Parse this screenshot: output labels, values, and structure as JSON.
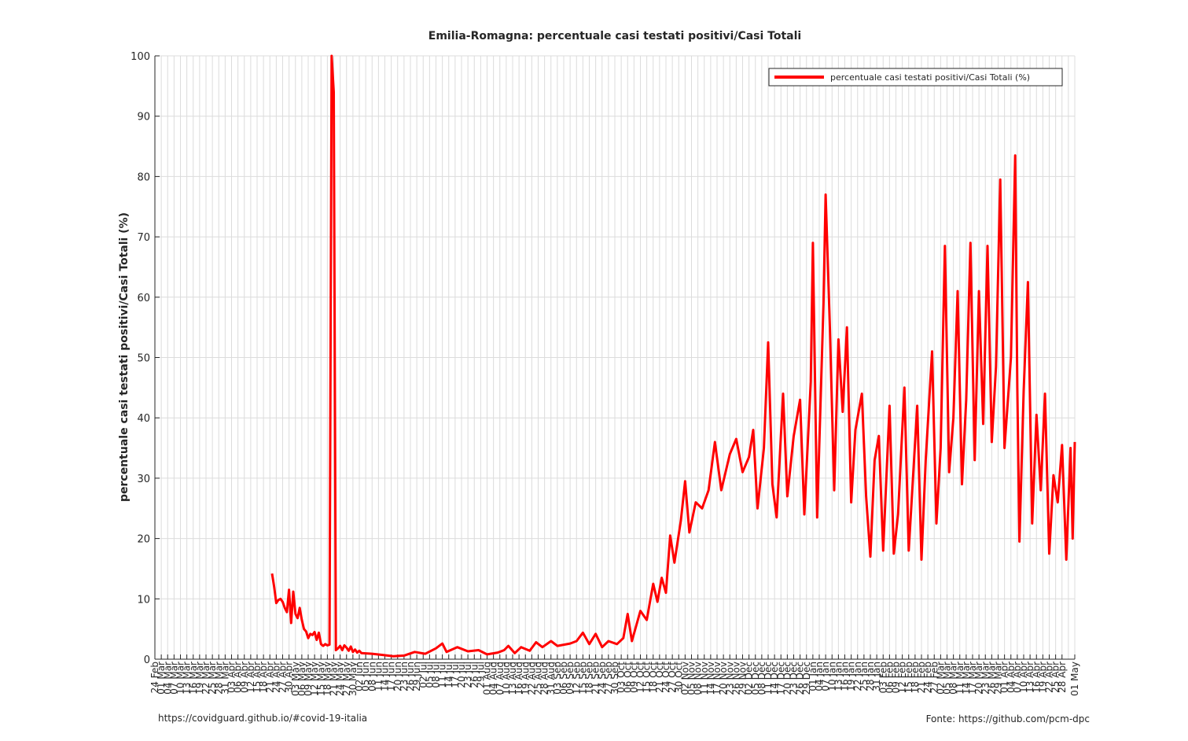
{
  "chart_data": {
    "type": "line",
    "title": "Emilia-Romagna: percentuale casi testati positivi/Casi Totali",
    "xlabel": "",
    "ylabel": "percentuale casi testati positivi/Casi Totali (%)",
    "ylim": [
      0,
      100
    ],
    "yticks": [
      0,
      10,
      20,
      30,
      40,
      50,
      60,
      70,
      80,
      90,
      100
    ],
    "grid": true,
    "legend_position": "top-right",
    "x_start": "2020-02-24",
    "x_end": "2021-05-01",
    "xtick_labels": [
      "24 Feb",
      "01 Mar",
      "04 Mar",
      "07 Mar",
      "10 Mar",
      "13 Mar",
      "16 Mar",
      "19 Mar",
      "22 Mar",
      "25 Mar",
      "28 Mar",
      "31 Mar",
      "03 Apr",
      "06 Apr",
      "09 Apr",
      "12 Apr",
      "15 Apr",
      "18 Apr",
      "21 Apr",
      "24 Apr",
      "27 Apr",
      "30 Apr",
      "03 May",
      "06 May",
      "09 May",
      "12 May",
      "15 May",
      "18 May",
      "21 May",
      "24 May",
      "27 May",
      "30 May",
      "02 Jun",
      "05 Jun",
      "08 Jun",
      "11 Jun",
      "14 Jun",
      "17 Jun",
      "20 Jun",
      "23 Jun",
      "26 Jun",
      "29 Jun",
      "02 Jul",
      "05 Jul",
      "08 Jul",
      "11 Jul",
      "14 Jul",
      "17 Jul",
      "20 Jul",
      "23 Jul",
      "26 Jul",
      "29 Jul",
      "01 Aug",
      "04 Aug",
      "07 Aug",
      "10 Aug",
      "13 Aug",
      "16 Aug",
      "19 Aug",
      "22 Aug",
      "25 Aug",
      "28 Aug",
      "31 Aug",
      "03 Sep",
      "06 Sep",
      "09 Sep",
      "12 Sep",
      "15 Sep",
      "18 Sep",
      "21 Sep",
      "24 Sep",
      "27 Sep",
      "30 Sep",
      "03 Oct",
      "06 Oct",
      "09 Oct",
      "12 Oct",
      "15 Oct",
      "18 Oct",
      "21 Oct",
      "24 Oct",
      "27 Oct",
      "30 Oct",
      "02 Nov",
      "05 Nov",
      "08 Nov",
      "11 Nov",
      "14 Nov",
      "17 Nov",
      "20 Nov",
      "23 Nov",
      "26 Nov",
      "29 Nov",
      "02 Dec",
      "05 Dec",
      "08 Dec",
      "11 Dec",
      "14 Dec",
      "17 Dec",
      "20 Dec",
      "23 Dec",
      "26 Dec",
      "29 Dec",
      "01 Jan",
      "04 Jan",
      "07 Jan",
      "10 Jan",
      "13 Jan",
      "16 Jan",
      "19 Jan",
      "22 Jan",
      "25 Jan",
      "28 Jan",
      "31 Jan",
      "03 Feb",
      "06 Feb",
      "09 Feb",
      "12 Feb",
      "15 Feb",
      "18 Feb",
      "21 Feb",
      "24 Feb",
      "27 Feb",
      "02 Mar",
      "05 Mar",
      "08 Mar",
      "11 Mar",
      "14 Mar",
      "17 Mar",
      "20 Mar",
      "23 Mar",
      "26 Mar",
      "29 Mar",
      "01 Apr",
      "04 Apr",
      "07 Apr",
      "10 Apr",
      "13 Apr",
      "16 Apr",
      "19 Apr",
      "22 Apr",
      "25 Apr",
      "28 Apr",
      "01 May"
    ],
    "series": [
      {
        "name": "percentuale casi testati positivi/Casi Totali (%)",
        "color": "#ff0000",
        "points": [
          [
            "2020-04-19",
            14.2
          ],
          [
            "2020-04-20",
            12.0
          ],
          [
            "2020-04-21",
            9.3
          ],
          [
            "2020-04-22",
            9.8
          ],
          [
            "2020-04-23",
            10.0
          ],
          [
            "2020-04-24",
            9.5
          ],
          [
            "2020-04-25",
            8.5
          ],
          [
            "2020-04-26",
            7.8
          ],
          [
            "2020-04-27",
            11.5
          ],
          [
            "2020-04-28",
            6.0
          ],
          [
            "2020-04-29",
            11.2
          ],
          [
            "2020-04-30",
            7.5
          ],
          [
            "2020-05-01",
            6.8
          ],
          [
            "2020-05-02",
            8.5
          ],
          [
            "2020-05-03",
            6.5
          ],
          [
            "2020-05-04",
            5.0
          ],
          [
            "2020-05-05",
            4.6
          ],
          [
            "2020-05-06",
            3.5
          ],
          [
            "2020-05-07",
            4.2
          ],
          [
            "2020-05-08",
            4.0
          ],
          [
            "2020-05-09",
            4.5
          ],
          [
            "2020-05-10",
            3.2
          ],
          [
            "2020-05-11",
            4.4
          ],
          [
            "2020-05-12",
            2.5
          ],
          [
            "2020-05-13",
            2.2
          ],
          [
            "2020-05-14",
            2.5
          ],
          [
            "2020-05-15",
            2.3
          ],
          [
            "2020-05-16",
            2.4
          ],
          [
            "2020-05-17",
            100
          ],
          [
            "2020-05-18",
            94
          ],
          [
            "2020-05-19",
            1.5
          ],
          [
            "2020-05-20",
            1.8
          ],
          [
            "2020-05-21",
            2.2
          ],
          [
            "2020-05-22",
            1.5
          ],
          [
            "2020-05-23",
            2.3
          ],
          [
            "2020-05-24",
            1.9
          ],
          [
            "2020-05-25",
            1.4
          ],
          [
            "2020-05-26",
            2.1
          ],
          [
            "2020-05-27",
            1.2
          ],
          [
            "2020-05-28",
            1.6
          ],
          [
            "2020-05-29",
            1.1
          ],
          [
            "2020-05-30",
            1.4
          ],
          [
            "2020-05-31",
            1.0
          ],
          [
            "2020-06-05",
            0.9
          ],
          [
            "2020-06-10",
            0.7
          ],
          [
            "2020-06-15",
            0.5
          ],
          [
            "2020-06-20",
            0.6
          ],
          [
            "2020-06-25",
            1.2
          ],
          [
            "2020-06-30",
            0.9
          ],
          [
            "2020-07-05",
            1.8
          ],
          [
            "2020-07-08",
            2.6
          ],
          [
            "2020-07-10",
            1.2
          ],
          [
            "2020-07-15",
            2.0
          ],
          [
            "2020-07-20",
            1.3
          ],
          [
            "2020-07-25",
            1.5
          ],
          [
            "2020-07-29",
            0.8
          ],
          [
            "2020-08-03",
            1.1
          ],
          [
            "2020-08-06",
            1.5
          ],
          [
            "2020-08-08",
            2.2
          ],
          [
            "2020-08-11",
            1.0
          ],
          [
            "2020-08-14",
            2.0
          ],
          [
            "2020-08-18",
            1.4
          ],
          [
            "2020-08-21",
            2.8
          ],
          [
            "2020-08-24",
            2.0
          ],
          [
            "2020-08-28",
            3.0
          ],
          [
            "2020-08-31",
            2.2
          ],
          [
            "2020-09-03",
            2.4
          ],
          [
            "2020-09-06",
            2.6
          ],
          [
            "2020-09-09",
            3.0
          ],
          [
            "2020-09-12",
            4.4
          ],
          [
            "2020-09-15",
            2.5
          ],
          [
            "2020-09-18",
            4.2
          ],
          [
            "2020-09-21",
            2.0
          ],
          [
            "2020-09-24",
            3.0
          ],
          [
            "2020-09-28",
            2.5
          ],
          [
            "2020-10-01",
            3.5
          ],
          [
            "2020-10-03",
            7.5
          ],
          [
            "2020-10-05",
            3.0
          ],
          [
            "2020-10-09",
            8.0
          ],
          [
            "2020-10-12",
            6.5
          ],
          [
            "2020-10-15",
            12.5
          ],
          [
            "2020-10-17",
            9.5
          ],
          [
            "2020-10-19",
            13.5
          ],
          [
            "2020-10-21",
            11.0
          ],
          [
            "2020-10-23",
            20.5
          ],
          [
            "2020-10-25",
            16.0
          ],
          [
            "2020-10-28",
            23.0
          ],
          [
            "2020-10-30",
            29.5
          ],
          [
            "2020-11-01",
            21.0
          ],
          [
            "2020-11-04",
            26.0
          ],
          [
            "2020-11-07",
            25.0
          ],
          [
            "2020-11-10",
            28.0
          ],
          [
            "2020-11-13",
            36.0
          ],
          [
            "2020-11-16",
            28.0
          ],
          [
            "2020-11-20",
            34.0
          ],
          [
            "2020-11-23",
            36.5
          ],
          [
            "2020-11-26",
            31.0
          ],
          [
            "2020-11-29",
            33.5
          ],
          [
            "2020-12-01",
            38.0
          ],
          [
            "2020-12-03",
            25.0
          ],
          [
            "2020-12-06",
            35.0
          ],
          [
            "2020-12-08",
            52.5
          ],
          [
            "2020-12-10",
            29.0
          ],
          [
            "2020-12-12",
            23.5
          ],
          [
            "2020-12-15",
            44.0
          ],
          [
            "2020-12-17",
            27.0
          ],
          [
            "2020-12-20",
            37.0
          ],
          [
            "2020-12-23",
            43.0
          ],
          [
            "2020-12-25",
            24.0
          ],
          [
            "2020-12-28",
            46.0
          ],
          [
            "2020-12-29",
            69.0
          ],
          [
            "2020-12-31",
            23.5
          ],
          [
            "2021-01-03",
            59.0
          ],
          [
            "2021-01-04",
            77.0
          ],
          [
            "2021-01-06",
            55.0
          ],
          [
            "2021-01-08",
            28.0
          ],
          [
            "2021-01-10",
            53.0
          ],
          [
            "2021-01-12",
            41.0
          ],
          [
            "2021-01-14",
            55.0
          ],
          [
            "2021-01-16",
            26.0
          ],
          [
            "2021-01-18",
            38.0
          ],
          [
            "2021-01-21",
            44.0
          ],
          [
            "2021-01-23",
            27.0
          ],
          [
            "2021-01-25",
            17.0
          ],
          [
            "2021-01-27",
            33.0
          ],
          [
            "2021-01-29",
            37.0
          ],
          [
            "2021-01-31",
            18.0
          ],
          [
            "2021-02-03",
            42.0
          ],
          [
            "2021-02-05",
            17.5
          ],
          [
            "2021-02-07",
            24.0
          ],
          [
            "2021-02-10",
            45.0
          ],
          [
            "2021-02-12",
            18.0
          ],
          [
            "2021-02-14",
            30.0
          ],
          [
            "2021-02-16",
            42.0
          ],
          [
            "2021-02-18",
            16.5
          ],
          [
            "2021-02-20",
            33.0
          ],
          [
            "2021-02-23",
            51.0
          ],
          [
            "2021-02-25",
            22.5
          ],
          [
            "2021-02-27",
            35.0
          ],
          [
            "2021-03-01",
            68.5
          ],
          [
            "2021-03-03",
            31.0
          ],
          [
            "2021-03-05",
            40.0
          ],
          [
            "2021-03-07",
            61.0
          ],
          [
            "2021-03-09",
            29.0
          ],
          [
            "2021-03-11",
            43.0
          ],
          [
            "2021-03-13",
            69.0
          ],
          [
            "2021-03-15",
            33.0
          ],
          [
            "2021-03-17",
            61.0
          ],
          [
            "2021-03-19",
            39.0
          ],
          [
            "2021-03-21",
            68.5
          ],
          [
            "2021-03-23",
            36.0
          ],
          [
            "2021-03-25",
            48.5
          ],
          [
            "2021-03-27",
            79.5
          ],
          [
            "2021-03-29",
            35.0
          ],
          [
            "2021-04-01",
            50.0
          ],
          [
            "2021-04-03",
            83.5
          ],
          [
            "2021-04-04",
            45.0
          ],
          [
            "2021-04-05",
            19.5
          ],
          [
            "2021-04-07",
            44.5
          ],
          [
            "2021-04-09",
            62.5
          ],
          [
            "2021-04-11",
            22.5
          ],
          [
            "2021-04-13",
            40.5
          ],
          [
            "2021-04-15",
            28.0
          ],
          [
            "2021-04-17",
            44.0
          ],
          [
            "2021-04-19",
            17.5
          ],
          [
            "2021-04-21",
            30.5
          ],
          [
            "2021-04-23",
            26.0
          ],
          [
            "2021-04-25",
            35.5
          ],
          [
            "2021-04-27",
            16.5
          ],
          [
            "2021-04-29",
            35.0
          ],
          [
            "2021-04-30",
            20.0
          ],
          [
            "2021-05-01",
            36.0
          ]
        ]
      }
    ]
  },
  "footer": {
    "left": "https://covidguard.github.io/#covid-19-italia",
    "right": "Fonte: https://github.com/pcm-dpc"
  }
}
